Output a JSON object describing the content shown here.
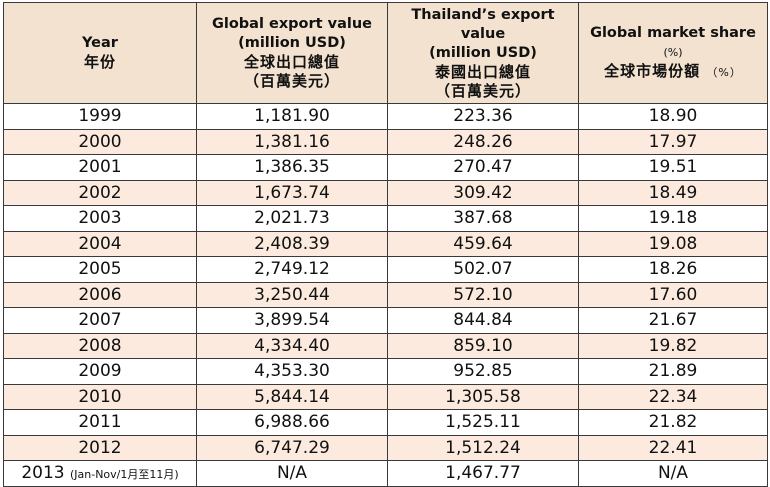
{
  "header": {
    "year_en": "Year",
    "year_zh": "年份",
    "global_en_1": "Global export value",
    "global_en_2": "(million USD)",
    "global_zh_1": "全球出口總值",
    "global_zh_2": "（百萬美元）",
    "thai_en_1": "Thailand’s export value",
    "thai_en_2": "(million USD)",
    "thai_zh_1": "泰國出口總值",
    "thai_zh_2": "（百萬美元）",
    "share_en": "Global market share",
    "share_en_pct": "(%)",
    "share_zh": "全球市場份額",
    "share_zh_pct": "（%）"
  },
  "rows": [
    {
      "year": "1999",
      "global": "1,181.90",
      "thai": "223.36",
      "share": "18.90"
    },
    {
      "year": "2000",
      "global": "1,381.16",
      "thai": "248.26",
      "share": "17.97"
    },
    {
      "year": "2001",
      "global": "1,386.35",
      "thai": "270.47",
      "share": "19.51"
    },
    {
      "year": "2002",
      "global": "1,673.74",
      "thai": "309.42",
      "share": "18.49"
    },
    {
      "year": "2003",
      "global": "2,021.73",
      "thai": "387.68",
      "share": "19.18"
    },
    {
      "year": "2004",
      "global": "2,408.39",
      "thai": "459.64",
      "share": "19.08"
    },
    {
      "year": "2005",
      "global": "2,749.12",
      "thai": "502.07",
      "share": "18.26"
    },
    {
      "year": "2006",
      "global": "3,250.44",
      "thai": "572.10",
      "share": "17.60"
    },
    {
      "year": "2007",
      "global": "3,899.54",
      "thai": "844.84",
      "share": "21.67"
    },
    {
      "year": "2008",
      "global": "4,334.40",
      "thai": "859.10",
      "share": "19.82"
    },
    {
      "year": "2009",
      "global": "4,353.30",
      "thai": "952.85",
      "share": "21.89"
    },
    {
      "year": "2010",
      "global": "5,844.14",
      "thai": "1,305.58",
      "share": "22.34"
    },
    {
      "year": "2011",
      "global": "6,988.66",
      "thai": "1,525.11",
      "share": "21.82"
    },
    {
      "year": "2012",
      "global": "6,747.29",
      "thai": "1,512.24",
      "share": "22.41"
    }
  ],
  "last_row": {
    "year": "2013",
    "year_note": "(Jan-Nov/1月至11月)",
    "global": "N/A",
    "thai": "1,467.77",
    "share": "N/A"
  },
  "colors": {
    "header_bg": "#f3e2cf",
    "tint_row_bg": "#fbeadd",
    "border": "#3a3a3a"
  }
}
